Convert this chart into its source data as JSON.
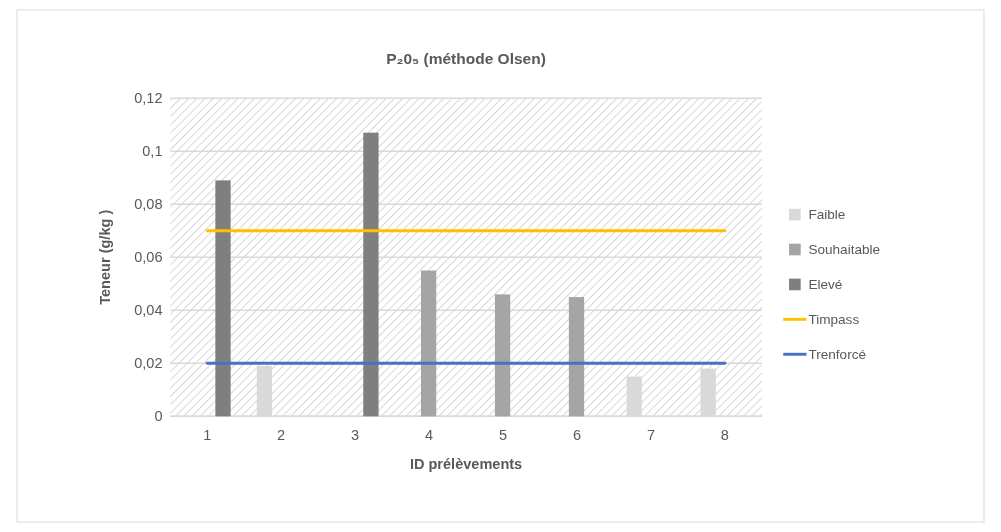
{
  "chart_data": {
    "type": "bar",
    "title": "P₂0₅ (méthode Olsen)",
    "xlabel": "ID prélèvements",
    "ylabel": "Teneur (g/kg )",
    "categories": [
      "1",
      "2",
      "3",
      "4",
      "5",
      "6",
      "7",
      "8"
    ],
    "series": [
      {
        "name": "Faible",
        "color": "#d9d9d9",
        "values": [
          null,
          0.019,
          null,
          null,
          null,
          null,
          0.015,
          0.018
        ]
      },
      {
        "name": "Souhaitable",
        "color": "#a5a5a5",
        "values": [
          null,
          null,
          null,
          0.055,
          0.046,
          0.045,
          null,
          null
        ]
      },
      {
        "name": "Elevé",
        "color": "#7f7f7f",
        "values": [
          0.089,
          null,
          0.107,
          null,
          null,
          null,
          null,
          null
        ]
      },
      {
        "name": "Timpass",
        "type": "line",
        "color": "#ffc000",
        "values": [
          0.07,
          0.07,
          0.07,
          0.07,
          0.07,
          0.07,
          0.07,
          0.07
        ]
      },
      {
        "name": "Trenforcé",
        "type": "line",
        "color": "#4472c4",
        "values": [
          0.02,
          0.02,
          0.02,
          0.02,
          0.02,
          0.02,
          0.02,
          0.02
        ]
      }
    ],
    "ylim": [
      0,
      0.12
    ],
    "yticks": [
      0,
      {
        "value": 0.02,
        "label": "0,02"
      },
      {
        "value": 0.04,
        "label": "0,04"
      },
      {
        "value": 0.06,
        "label": "0,06"
      },
      {
        "value": 0.08,
        "label": "0,08"
      },
      {
        "value": 0.1,
        "label": "0,1"
      },
      {
        "value": 0.12,
        "label": "0,12"
      }
    ],
    "grid": "y",
    "legend": "right"
  }
}
